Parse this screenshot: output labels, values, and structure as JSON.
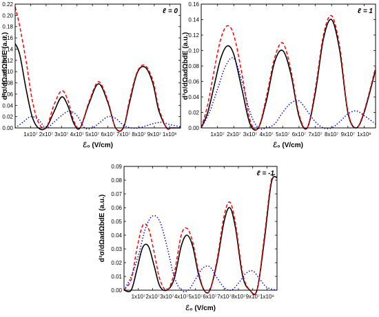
{
  "chart_data": [
    {
      "type": "line",
      "panel_label": "ℓ = 0",
      "ylabel": "d³σ/dΩadΩbdE (a.u.)",
      "xlabel": "ℰ₀ (V/cm)",
      "xlim": [
        0,
        107000000.0
      ],
      "ylim": [
        0,
        0.22
      ],
      "yticks": [
        "0.00",
        "0.02",
        "0.04",
        "0.06",
        "0.08",
        "0.10",
        "0.12",
        "0.14",
        "0.16",
        "0.18",
        "0.20",
        "0.22"
      ],
      "xticks": [
        "1x10⁷",
        "2x10⁷",
        "3x10⁷",
        "4x10⁷",
        "5x10⁷",
        "6x10⁷",
        "7x10⁷",
        "8x10⁷",
        "9x10⁷",
        "1x10⁸"
      ],
      "grid": false,
      "series": [
        {
          "style": "solid",
          "color": "#000000",
          "x": [
            0.0,
            3000000.0,
            7000000.0,
            11000000.0,
            15000000.0,
            20000000.0,
            25000000.0,
            30000000.0,
            34000000.0,
            38000000.0,
            42000000.0,
            48000000.0,
            54000000.0,
            60000000.0,
            65000000.0,
            70000000.0,
            74000000.0,
            79000000.0,
            84000000.0,
            89000000.0,
            93000000.0,
            98000000.0,
            101000000.0,
            107000000.0
          ],
          "y": [
            0.15,
            0.13,
            0.07,
            0.02,
            0.0,
            0.0,
            0.028,
            0.055,
            0.04,
            0.008,
            0.0,
            0.045,
            0.0785,
            0.045,
            0.0,
            0.0,
            0.045,
            0.098,
            0.108,
            0.08,
            0.03,
            0.0,
            0.0,
            0.0
          ]
        },
        {
          "style": "dashed",
          "color": "#ff0000",
          "x": [
            0.0,
            3000000.0,
            7000000.0,
            11000000.0,
            15000000.0,
            20000000.0,
            25000000.0,
            30000000.0,
            34000000.0,
            38000000.0,
            42000000.0,
            48000000.0,
            54000000.0,
            60000000.0,
            65000000.0,
            70000000.0,
            74000000.0,
            79000000.0,
            84000000.0,
            89000000.0,
            93000000.0,
            98000000.0,
            101000000.0,
            107000000.0
          ],
          "y": [
            0.215,
            0.18,
            0.12,
            0.05,
            0.01,
            0.0,
            0.04,
            0.066,
            0.05,
            0.012,
            0.0,
            0.048,
            0.082,
            0.048,
            0.0,
            0.0,
            0.05,
            0.1,
            0.111,
            0.085,
            0.035,
            0.0,
            0.0,
            0.0
          ]
        },
        {
          "style": "dotted",
          "color": "#0000ff",
          "x": [
            0.0,
            5000000.0,
            10000000.0,
            15000000.0,
            20000000.0,
            25000000.0,
            30000000.0,
            35000000.0,
            40000000.0,
            45000000.0,
            50000000.0,
            55000000.0,
            60000000.0,
            65000000.0,
            70000000.0,
            75000000.0,
            80000000.0,
            85000000.0,
            90000000.0,
            95000000.0,
            100000000.0,
            107000000.0
          ],
          "y": [
            0.0,
            0.01,
            0.02,
            0.015,
            0.0,
            0.01,
            0.022,
            0.03,
            0.022,
            0.0,
            0.0,
            0.01,
            0.02,
            0.017,
            0.005,
            0.0,
            0.0,
            0.004,
            0.008,
            0.01,
            0.006,
            0.002
          ]
        }
      ]
    },
    {
      "type": "line",
      "panel_label": "ℓ = 1",
      "ylabel": "d³σ/dΩadΩbdE (a.u.)",
      "xlabel": "ℰ₀ (V/cm)",
      "xlim": [
        0,
        107000000.0
      ],
      "ylim": [
        0,
        0.16
      ],
      "yticks": [
        "0.00",
        "0.02",
        "0.04",
        "0.06",
        "0.08",
        "0.10",
        "0.12",
        "0.14",
        "0.16"
      ],
      "xticks": [
        "1x10⁷",
        "2x10⁷",
        "3x10⁷",
        "4x10⁷",
        "5x10⁷",
        "6x10⁷",
        "7x10⁷",
        "8x10⁷",
        "9x10⁷",
        "1x10⁸"
      ],
      "grid": false,
      "series": [
        {
          "style": "solid",
          "color": "#000000",
          "x": [
            0.0,
            4000000.0,
            8000000.0,
            12000000.0,
            16000000.0,
            20000000.0,
            25000000.0,
            30000000.0,
            35000000.0,
            40000000.0,
            45000000.0,
            50000000.0,
            55000000.0,
            60000000.0,
            65000000.0,
            70000000.0,
            75000000.0,
            80000000.0,
            85000000.0,
            90000000.0,
            95000000.0,
            100000000.0,
            107000000.0
          ],
          "y": [
            0.0,
            0.02,
            0.055,
            0.09,
            0.106,
            0.095,
            0.05,
            0.005,
            0.0,
            0.035,
            0.085,
            0.1,
            0.07,
            0.015,
            0.0,
            0.045,
            0.115,
            0.14,
            0.1,
            0.02,
            0.0,
            0.02,
            0.075
          ]
        },
        {
          "style": "dashed",
          "color": "#ff0000",
          "x": [
            0.0,
            4000000.0,
            8000000.0,
            12000000.0,
            16000000.0,
            20000000.0,
            25000000.0,
            30000000.0,
            35000000.0,
            40000000.0,
            45000000.0,
            50000000.0,
            55000000.0,
            60000000.0,
            65000000.0,
            70000000.0,
            75000000.0,
            80000000.0,
            85000000.0,
            90000000.0,
            95000000.0,
            100000000.0,
            107000000.0
          ],
          "y": [
            0.0,
            0.03,
            0.075,
            0.115,
            0.132,
            0.12,
            0.07,
            0.01,
            0.0,
            0.04,
            0.09,
            0.11,
            0.075,
            0.018,
            0.0,
            0.05,
            0.12,
            0.145,
            0.105,
            0.022,
            0.0,
            0.022,
            0.078
          ]
        },
        {
          "style": "dotted",
          "color": "#0000ff",
          "x": [
            0.0,
            5000000.0,
            10000000.0,
            15000000.0,
            20000000.0,
            25000000.0,
            30000000.0,
            35000000.0,
            40000000.0,
            45000000.0,
            50000000.0,
            55000000.0,
            60000000.0,
            65000000.0,
            70000000.0,
            75000000.0,
            80000000.0,
            85000000.0,
            90000000.0,
            95000000.0,
            100000000.0,
            107000000.0
          ],
          "y": [
            0.0,
            0.02,
            0.05,
            0.08,
            0.09,
            0.06,
            0.02,
            0.0,
            0.0,
            0.005,
            0.02,
            0.032,
            0.035,
            0.022,
            0.008,
            0.0,
            0.0,
            0.008,
            0.018,
            0.022,
            0.016,
            0.005
          ]
        }
      ]
    },
    {
      "type": "line",
      "panel_label": "ℓ = -1",
      "ylabel": "d³σ/dΩadΩbdE (a.u.)",
      "xlabel": "ℰ₀ (V/cm)",
      "xlim": [
        0,
        107000000.0
      ],
      "ylim": [
        0,
        0.09
      ],
      "yticks": [
        "0.00",
        "0.01",
        "0.02",
        "0.03",
        "0.04",
        "0.05",
        "0.06",
        "0.07",
        "0.08",
        "0.09"
      ],
      "xticks": [
        "1x10⁷",
        "2x10⁷",
        "3x10⁷",
        "4x10⁷",
        "5x10⁷",
        "6x10⁷",
        "7x10⁷",
        "8x10⁷",
        "9x10⁷",
        "1x10⁸"
      ],
      "grid": false,
      "series": [
        {
          "style": "solid",
          "color": "#000000",
          "x": [
            0.0,
            5000000.0,
            9000000.0,
            13000000.0,
            17000000.0,
            21000000.0,
            25000000.0,
            30000000.0,
            35000000.0,
            40000000.0,
            44000000.0,
            48000000.0,
            52000000.0,
            56000000.0,
            60000000.0,
            65000000.0,
            70000000.0,
            74000000.0,
            78000000.0,
            83000000.0,
            88000000.0,
            93000000.0,
            98000000.0,
            103000000.0,
            107000000.0
          ],
          "y": [
            0.0,
            0.0,
            0.015,
            0.031,
            0.032,
            0.018,
            0.003,
            0.0,
            0.008,
            0.032,
            0.04,
            0.032,
            0.012,
            0.0,
            0.0,
            0.02,
            0.05,
            0.06,
            0.045,
            0.01,
            0.0,
            0.0,
            0.035,
            0.078,
            0.082
          ]
        },
        {
          "style": "dashed",
          "color": "#ff0000",
          "x": [
            0.0,
            5000000.0,
            9000000.0,
            13000000.0,
            17000000.0,
            21000000.0,
            25000000.0,
            30000000.0,
            35000000.0,
            40000000.0,
            44000000.0,
            48000000.0,
            52000000.0,
            56000000.0,
            60000000.0,
            65000000.0,
            70000000.0,
            74000000.0,
            78000000.0,
            83000000.0,
            88000000.0,
            93000000.0,
            98000000.0,
            103000000.0,
            107000000.0
          ],
          "y": [
            0.0,
            0.008,
            0.03,
            0.047,
            0.045,
            0.028,
            0.008,
            0.0,
            0.012,
            0.04,
            0.045,
            0.035,
            0.014,
            0.0,
            0.0,
            0.022,
            0.054,
            0.064,
            0.048,
            0.012,
            0.0,
            0.0,
            0.038,
            0.08,
            0.083
          ]
        },
        {
          "style": "dotted",
          "color": "#0000ff",
          "x": [
            0.0,
            5000000.0,
            10000000.0,
            15000000.0,
            20000000.0,
            25000000.0,
            30000000.0,
            35000000.0,
            40000000.0,
            45000000.0,
            50000000.0,
            55000000.0,
            60000000.0,
            65000000.0,
            70000000.0,
            75000000.0,
            80000000.0,
            85000000.0,
            90000000.0,
            95000000.0,
            100000000.0,
            107000000.0
          ],
          "y": [
            0.0,
            0.01,
            0.025,
            0.045,
            0.054,
            0.05,
            0.032,
            0.01,
            0.0,
            0.0,
            0.008,
            0.016,
            0.017,
            0.009,
            0.002,
            0.0,
            0.005,
            0.012,
            0.014,
            0.008,
            0.002,
            0.0
          ]
        }
      ]
    }
  ]
}
